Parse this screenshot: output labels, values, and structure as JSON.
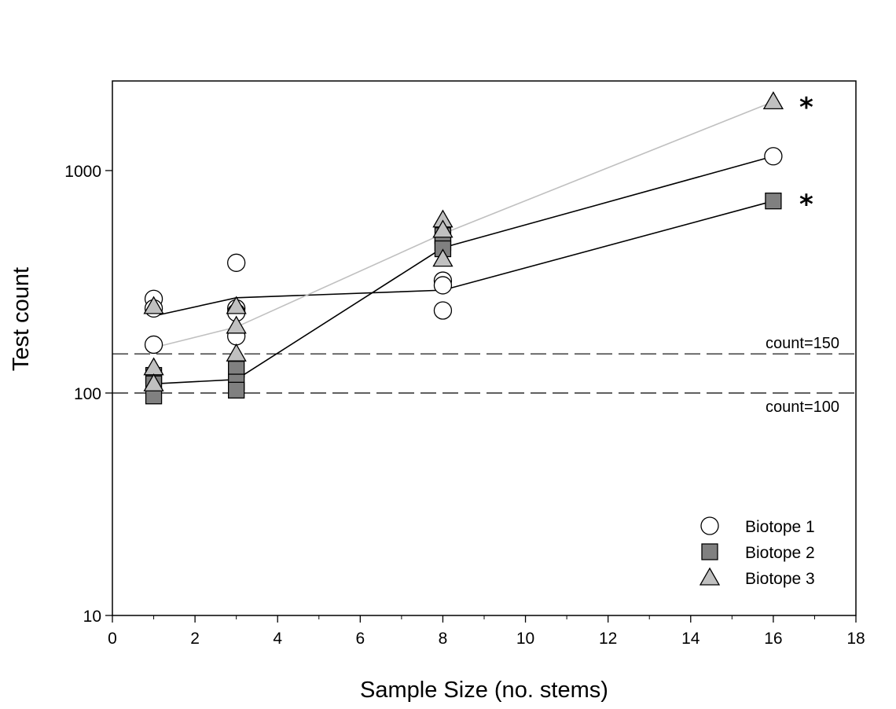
{
  "chart_data": {
    "type": "scatter",
    "title": "",
    "xlabel": "Sample Size (no. stems)",
    "ylabel": "Test count",
    "xlim": [
      0,
      18
    ],
    "ylim": [
      10,
      2500
    ],
    "yscale": "log",
    "x_ticks": [
      0,
      2,
      4,
      6,
      8,
      10,
      12,
      14,
      16,
      18
    ],
    "y_ticks": [
      10,
      100,
      1000
    ],
    "grid": false,
    "legend_position": "bottom-right",
    "reference_lines": [
      {
        "y": 150,
        "label": "count=150",
        "label_position": "above",
        "style": "dashed"
      },
      {
        "y": 100,
        "label": "count=100",
        "label_position": "below",
        "style": "dashed"
      }
    ],
    "series": [
      {
        "name": "Biotope 1",
        "marker": "circle",
        "fill": "#ffffff",
        "line_color": "#000000",
        "points": [
          {
            "x": 1,
            "y": 265
          },
          {
            "x": 1,
            "y": 240
          },
          {
            "x": 1,
            "y": 165
          },
          {
            "x": 3,
            "y": 385
          },
          {
            "x": 3,
            "y": 240
          },
          {
            "x": 3,
            "y": 230
          },
          {
            "x": 3,
            "y": 180
          },
          {
            "x": 8,
            "y": 320
          },
          {
            "x": 8,
            "y": 305
          },
          {
            "x": 8,
            "y": 235
          },
          {
            "x": 16,
            "y": 1160
          }
        ],
        "line": [
          {
            "x": 1,
            "y": 110
          },
          {
            "x": 3,
            "y": 115
          },
          {
            "x": 8,
            "y": 450
          },
          {
            "x": 16,
            "y": 1160
          }
        ]
      },
      {
        "name": "Biotope 2",
        "marker": "square",
        "fill": "#808080",
        "line_color": "#000000",
        "points": [
          {
            "x": 1,
            "y": 120
          },
          {
            "x": 1,
            "y": 110
          },
          {
            "x": 1,
            "y": 97
          },
          {
            "x": 3,
            "y": 128
          },
          {
            "x": 3,
            "y": 112
          },
          {
            "x": 3,
            "y": 103
          },
          {
            "x": 8,
            "y": 510
          },
          {
            "x": 8,
            "y": 475
          },
          {
            "x": 8,
            "y": 445
          },
          {
            "x": 16,
            "y": 730
          }
        ],
        "line": [
          {
            "x": 1,
            "y": 222
          },
          {
            "x": 3,
            "y": 268
          },
          {
            "x": 8,
            "y": 290
          },
          {
            "x": 16,
            "y": 730
          }
        ]
      },
      {
        "name": "Biotope 3",
        "marker": "triangle",
        "fill": "#c0c0c0",
        "line_color": "#c0c0c0",
        "points": [
          {
            "x": 1,
            "y": 245
          },
          {
            "x": 1,
            "y": 130
          },
          {
            "x": 1,
            "y": 110
          },
          {
            "x": 3,
            "y": 245
          },
          {
            "x": 3,
            "y": 200
          },
          {
            "x": 3,
            "y": 150
          },
          {
            "x": 8,
            "y": 600
          },
          {
            "x": 8,
            "y": 540
          },
          {
            "x": 8,
            "y": 400
          },
          {
            "x": 16,
            "y": 2040
          }
        ],
        "line": [
          {
            "x": 1,
            "y": 160
          },
          {
            "x": 3,
            "y": 198
          },
          {
            "x": 8,
            "y": 520
          },
          {
            "x": 16,
            "y": 2040
          }
        ]
      }
    ],
    "annotations": [
      {
        "text": "*",
        "x": 16.8,
        "y": 2000
      },
      {
        "text": "*",
        "x": 16.8,
        "y": 730
      }
    ]
  }
}
